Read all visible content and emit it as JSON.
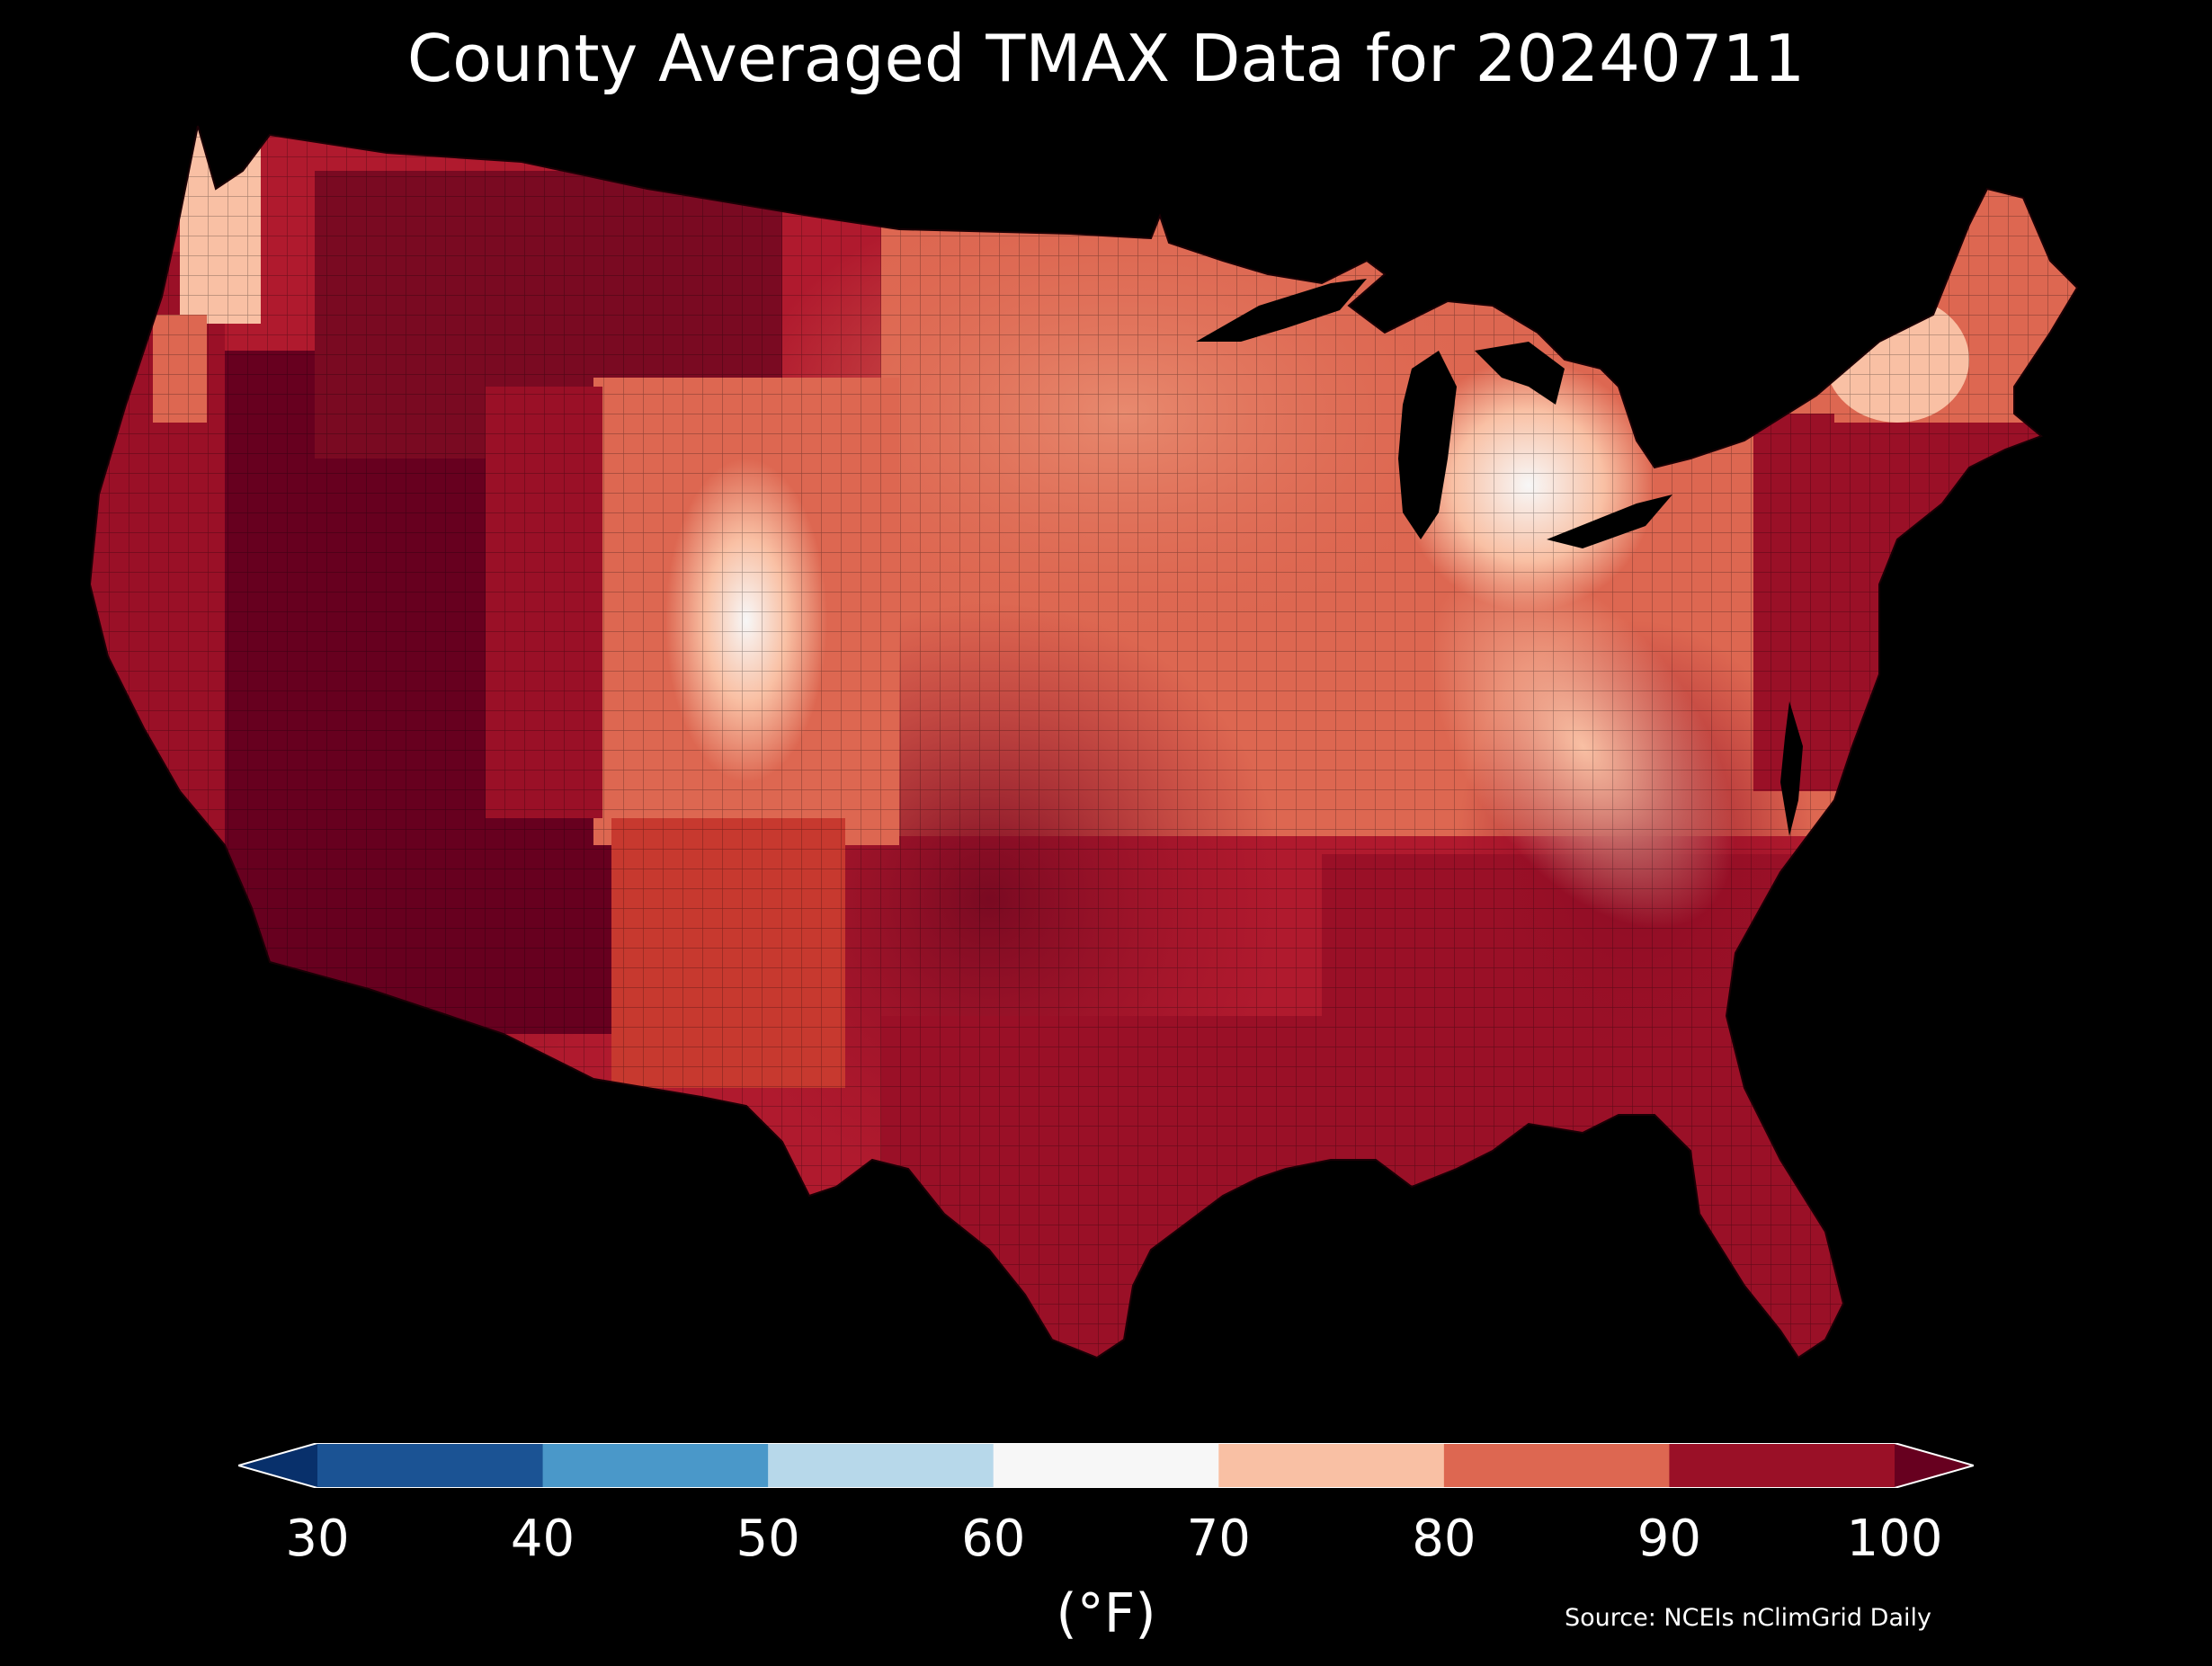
{
  "title": "County Averaged TMAX Data for 20240711",
  "colorbar": {
    "unit_label": "(°F)",
    "ticks": [
      "30",
      "40",
      "50",
      "60",
      "70",
      "80",
      "90",
      "100"
    ],
    "bins": [
      {
        "range": "<30",
        "color": "#08306b"
      },
      {
        "range": "30-40",
        "color": "#1b5394"
      },
      {
        "range": "40-50",
        "color": "#4a98c9"
      },
      {
        "range": "50-60",
        "color": "#b7d8ea"
      },
      {
        "range": "60-70",
        "color": "#f7f7f7"
      },
      {
        "range": "70-80",
        "color": "#f9c0a4"
      },
      {
        "range": "80-90",
        "color": "#dd6751"
      },
      {
        "range": "90-100",
        "color": "#9a1027"
      },
      {
        "range": ">100",
        "color": "#67001f"
      }
    ],
    "extend": "both"
  },
  "source": "Source: NCEIs nClimGrid Daily",
  "map": {
    "region": "contiguous United States",
    "variable": "TMAX",
    "date": "20240711",
    "background": "#000000",
    "regional_fill_colors": {
      "desert_southwest": "#67001f",
      "west_coast": "#9a1027",
      "pacific_northwest_coast": "#f9c0a4",
      "rocky_mountains": "#dd6751",
      "colorado_high_peaks": "#f7f7f7",
      "northern_plains": "#dd6751",
      "southern_plains": "#9a1027",
      "midwest": "#dd6751",
      "michigan": "#f7f7f7",
      "appalachians": "#f9c0a4",
      "southeast": "#9a1027",
      "northeast": "#9a1027",
      "maine": "#dd6751"
    }
  }
}
